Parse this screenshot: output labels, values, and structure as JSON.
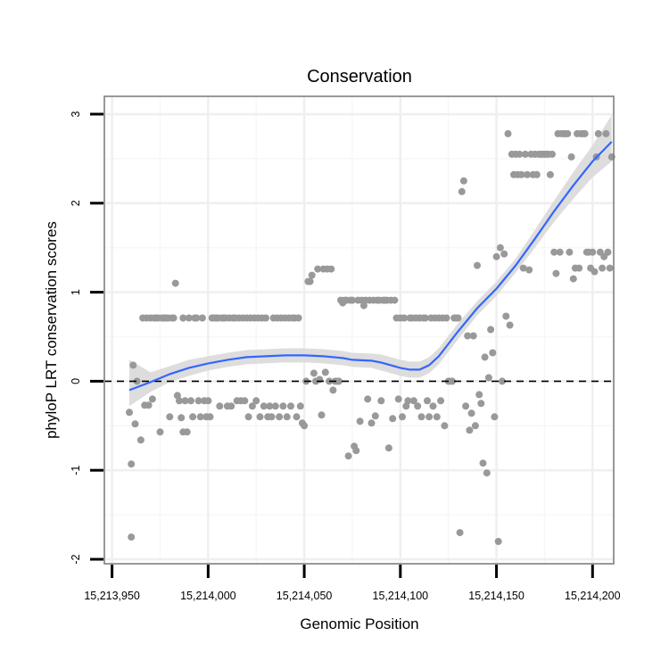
{
  "chart_data": {
    "type": "scatter",
    "title": "Conservation",
    "xlabel": "Genomic Position",
    "ylabel": "phyloP LRT conservation scores",
    "xlim": [
      15213946,
      15214211
    ],
    "ylim": [
      -2.05,
      3.2
    ],
    "x_ticks": [
      15213950,
      15214000,
      15214050,
      15214100,
      15214150,
      15214200
    ],
    "x_tick_labels": [
      "15,213,950",
      "15,214,000",
      "15,214,050",
      "15,214,100",
      "15,214,150",
      "15,214,200"
    ],
    "y_ticks": [
      -2,
      -1,
      0,
      1,
      2,
      3
    ],
    "y_tick_labels": [
      "-2",
      "-1",
      "0",
      "1",
      "2",
      "3"
    ],
    "reference_line": {
      "y": 0,
      "style": "dashed"
    },
    "grid": true,
    "legend": "none",
    "series": [
      {
        "name": "phyloP score",
        "kind": "points",
        "color": "#999999",
        "points": [
          [
            15213959,
            -0.35
          ],
          [
            15213960,
            -1.75
          ],
          [
            15213960,
            -0.93
          ],
          [
            15213961,
            0.18
          ],
          [
            15213962,
            -0.48
          ],
          [
            15213963,
            0
          ],
          [
            15213965,
            -0.66
          ],
          [
            15213966,
            0.71
          ],
          [
            15213967,
            -0.27
          ],
          [
            15213968,
            0.71
          ],
          [
            15213969,
            -0.27
          ],
          [
            15213970,
            0.71
          ],
          [
            15213971,
            -0.2
          ],
          [
            15213972,
            0.71
          ],
          [
            15213973,
            0.71
          ],
          [
            15213974,
            0.71
          ],
          [
            15213975,
            -0.57
          ],
          [
            15213976,
            0.71
          ],
          [
            15213977,
            0.71
          ],
          [
            15213978,
            0.71
          ],
          [
            15213979,
            0.71
          ],
          [
            15213980,
            -0.4
          ],
          [
            15213981,
            0.71
          ],
          [
            15213982,
            0.71
          ],
          [
            15213983,
            1.1
          ],
          [
            15213984,
            -0.16
          ],
          [
            15213985,
            -0.22
          ],
          [
            15213986,
            -0.41
          ],
          [
            15213987,
            0.71
          ],
          [
            15213987,
            -0.57
          ],
          [
            15213988,
            -0.22
          ],
          [
            15213989,
            -0.57
          ],
          [
            15213990,
            0.71
          ],
          [
            15213991,
            -0.22
          ],
          [
            15213992,
            -0.4
          ],
          [
            15213993,
            0.71
          ],
          [
            15213994,
            0.71
          ],
          [
            15213995,
            -0.22
          ],
          [
            15213996,
            -0.4
          ],
          [
            15213997,
            0.71
          ],
          [
            15213998,
            -0.22
          ],
          [
            15213999,
            -0.4
          ],
          [
            15214000,
            -0.22
          ],
          [
            15214001,
            -0.4
          ],
          [
            15214002,
            0.71
          ],
          [
            15214003,
            0.71
          ],
          [
            15214004,
            0.71
          ],
          [
            15214005,
            0.71
          ],
          [
            15214006,
            -0.28
          ],
          [
            15214007,
            0.71
          ],
          [
            15214008,
            0.71
          ],
          [
            15214009,
            0.71
          ],
          [
            15214010,
            -0.28
          ],
          [
            15214011,
            0.71
          ],
          [
            15214012,
            -0.28
          ],
          [
            15214013,
            0.71
          ],
          [
            15214014,
            0.71
          ],
          [
            15214015,
            -0.22
          ],
          [
            15214016,
            0.71
          ],
          [
            15214017,
            -0.22
          ],
          [
            15214018,
            0.71
          ],
          [
            15214019,
            -0.22
          ],
          [
            15214020,
            0.71
          ],
          [
            15214021,
            -0.4
          ],
          [
            15214022,
            0.71
          ],
          [
            15214023,
            -0.28
          ],
          [
            15214024,
            0.71
          ],
          [
            15214025,
            -0.22
          ],
          [
            15214026,
            0.71
          ],
          [
            15214027,
            -0.4
          ],
          [
            15214028,
            0.71
          ],
          [
            15214029,
            -0.28
          ],
          [
            15214030,
            0.71
          ],
          [
            15214031,
            -0.4
          ],
          [
            15214032,
            -0.28
          ],
          [
            15214033,
            -0.4
          ],
          [
            15214034,
            0.71
          ],
          [
            15214035,
            -0.28
          ],
          [
            15214036,
            0.71
          ],
          [
            15214037,
            -0.4
          ],
          [
            15214038,
            0.71
          ],
          [
            15214039,
            -0.28
          ],
          [
            15214040,
            0.71
          ],
          [
            15214041,
            -0.4
          ],
          [
            15214042,
            0.71
          ],
          [
            15214043,
            -0.28
          ],
          [
            15214044,
            0.71
          ],
          [
            15214045,
            0.71
          ],
          [
            15214046,
            -0.4
          ],
          [
            15214047,
            0.71
          ],
          [
            15214048,
            -0.28
          ],
          [
            15214049,
            -0.47
          ],
          [
            15214050,
            -0.5
          ],
          [
            15214051,
            0
          ],
          [
            15214052,
            1.12
          ],
          [
            15214053,
            1.12
          ],
          [
            15214054,
            1.19
          ],
          [
            15214055,
            0.09
          ],
          [
            15214056,
            0
          ],
          [
            15214057,
            1.26
          ],
          [
            15214058,
            0.02
          ],
          [
            15214059,
            -0.38
          ],
          [
            15214060,
            1.26
          ],
          [
            15214061,
            0.1
          ],
          [
            15214062,
            1.26
          ],
          [
            15214063,
            0
          ],
          [
            15214064,
            1.26
          ],
          [
            15214065,
            -0.1
          ],
          [
            15214066,
            0
          ],
          [
            15214067,
            0
          ],
          [
            15214068,
            0
          ],
          [
            15214069,
            0.91
          ],
          [
            15214070,
            0.88
          ],
          [
            15214071,
            0.91
          ],
          [
            15214072,
            0.91
          ],
          [
            15214073,
            -0.84
          ],
          [
            15214074,
            0.91
          ],
          [
            15214075,
            0.91
          ],
          [
            15214076,
            -0.73
          ],
          [
            15214077,
            -0.78
          ],
          [
            15214078,
            0.91
          ],
          [
            15214079,
            -0.45
          ],
          [
            15214080,
            0.91
          ],
          [
            15214081,
            0.85
          ],
          [
            15214082,
            0.91
          ],
          [
            15214083,
            -0.2
          ],
          [
            15214084,
            0.91
          ],
          [
            15214085,
            -0.47
          ],
          [
            15214086,
            0.91
          ],
          [
            15214087,
            -0.39
          ],
          [
            15214088,
            0.91
          ],
          [
            15214089,
            0.91
          ],
          [
            15214090,
            -0.22
          ],
          [
            15214091,
            0.91
          ],
          [
            15214092,
            0.91
          ],
          [
            15214093,
            0.91
          ],
          [
            15214094,
            -0.75
          ],
          [
            15214095,
            0.91
          ],
          [
            15214096,
            -0.42
          ],
          [
            15214097,
            0.91
          ],
          [
            15214098,
            0.71
          ],
          [
            15214099,
            -0.2
          ],
          [
            15214100,
            0.71
          ],
          [
            15214101,
            -0.4
          ],
          [
            15214102,
            0.71
          ],
          [
            15214103,
            -0.28
          ],
          [
            15214104,
            -0.22
          ],
          [
            15214105,
            0.71
          ],
          [
            15214106,
            0.71
          ],
          [
            15214107,
            -0.22
          ],
          [
            15214108,
            0.71
          ],
          [
            15214109,
            -0.28
          ],
          [
            15214110,
            0.71
          ],
          [
            15214111,
            -0.4
          ],
          [
            15214112,
            0.71
          ],
          [
            15214113,
            0.71
          ],
          [
            15214114,
            -0.22
          ],
          [
            15214115,
            -0.4
          ],
          [
            15214116,
            0.71
          ],
          [
            15214117,
            -0.28
          ],
          [
            15214118,
            0.71
          ],
          [
            15214119,
            -0.4
          ],
          [
            15214120,
            0.71
          ],
          [
            15214121,
            -0.22
          ],
          [
            15214122,
            0.71
          ],
          [
            15214123,
            -0.5
          ],
          [
            15214124,
            0.71
          ],
          [
            15214125,
            0
          ],
          [
            15214126,
            0
          ],
          [
            15214127,
            0
          ],
          [
            15214128,
            0.71
          ],
          [
            15214129,
            0.71
          ],
          [
            15214130,
            0.71
          ],
          [
            15214131,
            -1.7
          ],
          [
            15214132,
            2.13
          ],
          [
            15214133,
            2.25
          ],
          [
            15214134,
            -0.28
          ],
          [
            15214135,
            0.51
          ],
          [
            15214136,
            -0.55
          ],
          [
            15214137,
            -0.36
          ],
          [
            15214138,
            0.51
          ],
          [
            15214139,
            -0.5
          ],
          [
            15214140,
            1.3
          ],
          [
            15214141,
            -0.15
          ],
          [
            15214142,
            -0.25
          ],
          [
            15214143,
            -0.92
          ],
          [
            15214144,
            0.27
          ],
          [
            15214145,
            -1.03
          ],
          [
            15214146,
            0.04
          ],
          [
            15214147,
            0.58
          ],
          [
            15214148,
            0.32
          ],
          [
            15214149,
            -0.4
          ],
          [
            15214150,
            1.4
          ],
          [
            15214151,
            -1.8
          ],
          [
            15214152,
            1.5
          ],
          [
            15214153,
            0
          ],
          [
            15214154,
            1.43
          ],
          [
            15214155,
            0.73
          ],
          [
            15214156,
            2.78
          ],
          [
            15214157,
            0.63
          ],
          [
            15214158,
            2.55
          ],
          [
            15214159,
            2.32
          ],
          [
            15214160,
            2.55
          ],
          [
            15214161,
            2.32
          ],
          [
            15214162,
            2.55
          ],
          [
            15214163,
            2.32
          ],
          [
            15214164,
            1.27
          ],
          [
            15214165,
            2.55
          ],
          [
            15214166,
            2.32
          ],
          [
            15214167,
            1.25
          ],
          [
            15214168,
            2.55
          ],
          [
            15214169,
            2.32
          ],
          [
            15214170,
            2.55
          ],
          [
            15214171,
            2.32
          ],
          [
            15214172,
            2.55
          ],
          [
            15214173,
            2.55
          ],
          [
            15214174,
            2.55
          ],
          [
            15214175,
            2.55
          ],
          [
            15214176,
            2.55
          ],
          [
            15214177,
            2.55
          ],
          [
            15214178,
            2.32
          ],
          [
            15214179,
            2.55
          ],
          [
            15214180,
            1.45
          ],
          [
            15214181,
            1.21
          ],
          [
            15214182,
            2.78
          ],
          [
            15214183,
            1.45
          ],
          [
            15214184,
            2.78
          ],
          [
            15214185,
            2.78
          ],
          [
            15214186,
            2.78
          ],
          [
            15214187,
            2.78
          ],
          [
            15214188,
            1.45
          ],
          [
            15214189,
            2.52
          ],
          [
            15214190,
            1.15
          ],
          [
            15214191,
            1.27
          ],
          [
            15214192,
            2.78
          ],
          [
            15214193,
            1.27
          ],
          [
            15214194,
            2.78
          ],
          [
            15214195,
            2.78
          ],
          [
            15214196,
            2.78
          ],
          [
            15214197,
            1.45
          ],
          [
            15214198,
            1.45
          ],
          [
            15214199,
            1.27
          ],
          [
            15214200,
            1.45
          ],
          [
            15214201,
            1.23
          ],
          [
            15214202,
            2.52
          ],
          [
            15214203,
            2.78
          ],
          [
            15214204,
            1.45
          ],
          [
            15214205,
            1.27
          ],
          [
            15214206,
            1.4
          ],
          [
            15214207,
            2.78
          ],
          [
            15214208,
            1.45
          ],
          [
            15214209,
            1.27
          ],
          [
            15214210,
            2.52
          ]
        ]
      },
      {
        "name": "smoothed fit",
        "kind": "line",
        "color": "#3366FF",
        "band_color": "#D9D9D9",
        "x": [
          15213959,
          15213970,
          15213980,
          15213990,
          15214000,
          15214010,
          15214020,
          15214030,
          15214040,
          15214050,
          15214060,
          15214070,
          15214075,
          15214085,
          15214090,
          15214095,
          15214100,
          15214105,
          15214110,
          15214115,
          15214120,
          15214125,
          15214130,
          15214140,
          15214150,
          15214160,
          15214170,
          15214180,
          15214190,
          15214200,
          15214210
        ],
        "fit": [
          -0.1,
          -0.01,
          0.08,
          0.15,
          0.2,
          0.24,
          0.27,
          0.28,
          0.29,
          0.29,
          0.28,
          0.26,
          0.24,
          0.23,
          0.21,
          0.18,
          0.15,
          0.13,
          0.13,
          0.18,
          0.28,
          0.42,
          0.56,
          0.82,
          1.04,
          1.3,
          1.6,
          1.91,
          2.2,
          2.47,
          2.69
        ],
        "lower": [
          -0.28,
          -0.12,
          -0.01,
          0.06,
          0.12,
          0.16,
          0.19,
          0.2,
          0.21,
          0.21,
          0.2,
          0.18,
          0.16,
          0.15,
          0.12,
          0.09,
          0.06,
          0.04,
          0.04,
          0.09,
          0.19,
          0.33,
          0.47,
          0.74,
          0.96,
          1.22,
          1.5,
          1.79,
          2.05,
          2.29,
          2.47
        ],
        "upper": [
          0.24,
          0.1,
          0.17,
          0.24,
          0.28,
          0.32,
          0.35,
          0.36,
          0.37,
          0.37,
          0.36,
          0.34,
          0.32,
          0.31,
          0.3,
          0.27,
          0.24,
          0.22,
          0.22,
          0.27,
          0.37,
          0.51,
          0.65,
          0.9,
          1.12,
          1.38,
          1.7,
          2.03,
          2.35,
          2.65,
          2.99
        ]
      }
    ]
  }
}
